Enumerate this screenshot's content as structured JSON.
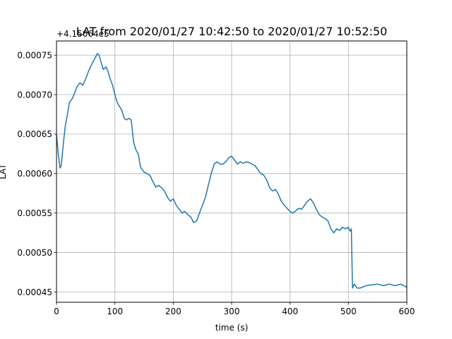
{
  "chart_data": {
    "type": "line",
    "title": "LAT from 2020/01/27 10:42:50 to 2020/01/27 10:52:50",
    "xlabel": "time (s)",
    "ylabel": "LAT",
    "offset_text": "+4.15064e5",
    "xlim": [
      0,
      600
    ],
    "ylim": [
      0.000437,
      0.000768
    ],
    "x_ticks": [
      0,
      100,
      200,
      300,
      400,
      500,
      600
    ],
    "y_ticks": [
      0.00045,
      0.0005,
      0.00055,
      0.0006,
      0.00065,
      0.0007,
      0.00075
    ],
    "grid": true,
    "line_color": "#1f77b4",
    "series": [
      {
        "x": [
          0,
          3,
          6,
          8,
          12,
          15,
          18,
          22,
          27,
          30,
          35,
          40,
          45,
          50,
          55,
          60,
          65,
          70,
          73,
          76,
          80,
          85,
          88,
          92,
          96,
          100,
          104,
          108,
          112,
          116,
          120,
          124,
          128,
          132,
          136,
          140,
          144,
          147,
          150,
          155,
          160,
          165,
          170,
          175,
          180,
          185,
          190,
          195,
          200,
          205,
          210,
          215,
          220,
          225,
          230,
          235,
          240,
          245,
          250,
          255,
          260,
          265,
          270,
          275,
          280,
          285,
          290,
          295,
          300,
          305,
          310,
          315,
          320,
          325,
          330,
          335,
          340,
          345,
          350,
          355,
          360,
          365,
          370,
          375,
          380,
          385,
          390,
          395,
          400,
          405,
          410,
          415,
          420,
          425,
          430,
          435,
          440,
          445,
          450,
          455,
          460,
          465,
          470,
          475,
          480,
          485,
          490,
          495,
          500,
          503,
          505,
          507,
          510,
          515,
          520,
          530,
          540,
          550,
          560,
          570,
          580,
          590,
          600
        ],
        "values": [
          0.00065,
          0.000625,
          0.000607,
          0.00061,
          0.00064,
          0.00066,
          0.000672,
          0.00069,
          0.000695,
          0.0007,
          0.00071,
          0.000715,
          0.000712,
          0.00072,
          0.00073,
          0.000738,
          0.000745,
          0.000752,
          0.00075,
          0.000742,
          0.000732,
          0.000735,
          0.00073,
          0.00072,
          0.000712,
          0.0007,
          0.00069,
          0.000685,
          0.00068,
          0.00067,
          0.000668,
          0.00067,
          0.000668,
          0.00064,
          0.00063,
          0.000625,
          0.000608,
          0.000605,
          0.000602,
          0.0006,
          0.000598,
          0.00059,
          0.000583,
          0.000585,
          0.000582,
          0.000578,
          0.00057,
          0.000565,
          0.000568,
          0.00056,
          0.000555,
          0.00055,
          0.000552,
          0.000548,
          0.000545,
          0.000538,
          0.00054,
          0.00055,
          0.00056,
          0.00057,
          0.000585,
          0.0006,
          0.000612,
          0.000615,
          0.000612,
          0.000612,
          0.000615,
          0.00062,
          0.000622,
          0.000617,
          0.000612,
          0.000615,
          0.000613,
          0.000615,
          0.000614,
          0.000612,
          0.00061,
          0.000605,
          0.0006,
          0.000598,
          0.000592,
          0.000582,
          0.000578,
          0.00058,
          0.000574,
          0.000565,
          0.00056,
          0.000556,
          0.000552,
          0.00055,
          0.000553,
          0.000556,
          0.000555,
          0.00056,
          0.000565,
          0.000568,
          0.000563,
          0.000555,
          0.000548,
          0.000545,
          0.000543,
          0.00054,
          0.00053,
          0.000525,
          0.00053,
          0.000528,
          0.000532,
          0.00053,
          0.000532,
          0.000527,
          0.00053,
          0.000455,
          0.00046,
          0.000455,
          0.000455,
          0.000458,
          0.000459,
          0.00046,
          0.000458,
          0.00046,
          0.000458,
          0.00046,
          0.000456
        ]
      }
    ]
  }
}
